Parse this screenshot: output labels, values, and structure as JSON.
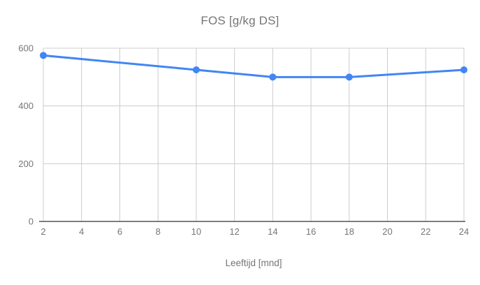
{
  "chart_data": {
    "type": "line",
    "title": "FOS [g/kg DS]",
    "xlabel": "Leeftijd [mnd]",
    "ylabel": "",
    "x": [
      2,
      10,
      14,
      18,
      24
    ],
    "series": [
      {
        "name": "FOS",
        "values": [
          575,
          525,
          500,
          500,
          525
        ]
      }
    ],
    "xlim": [
      2,
      24
    ],
    "ylim": [
      0,
      600
    ],
    "x_ticks": [
      2,
      4,
      6,
      8,
      10,
      12,
      14,
      16,
      18,
      20,
      22,
      24
    ],
    "y_ticks": [
      0,
      200,
      400,
      600
    ],
    "grid": true,
    "legend": "none",
    "colors": {
      "series": "#4285f4",
      "gridline": "#cccccc",
      "baseline": "#333333",
      "tick_label": "#757575",
      "title": "#757575",
      "background": "#ffffff"
    }
  }
}
